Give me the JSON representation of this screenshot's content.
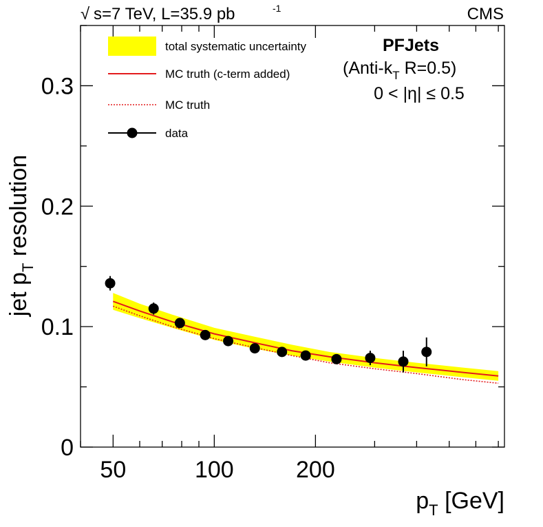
{
  "header": {
    "sqrt": "√",
    "energy": "s=7 TeV, L=35.9 pb",
    "energy_sup": "-1",
    "experiment": "CMS"
  },
  "annotation": {
    "line1": "PFJets",
    "line2": "(Anti-k",
    "line2_sub": "T",
    "line2_end": " R=0.5)",
    "line3": "0 < |η| ≤ 0.5"
  },
  "legend": {
    "band": "total systematic uncertainty",
    "mc_cterm": "MC truth (c-term added)",
    "mc_truth": "MC truth",
    "data": "data"
  },
  "colors": {
    "band": "#ffff00",
    "mc_cterm": "#e31a1c",
    "mc_truth": "#e31a1c",
    "data": "#000000"
  },
  "chart_data": {
    "type": "scatter",
    "xlabel": "p",
    "xlabel_sub": "T",
    "xlabel_unit": " [GeV]",
    "ylabel": "jet p",
    "ylabel_sub": "T",
    "ylabel_end": " resolution",
    "xscale": "log",
    "xlim": [
      40,
      730
    ],
    "ylim": [
      0,
      0.35
    ],
    "x_ticks": [
      {
        "value": 50,
        "label": "50"
      },
      {
        "value": 100,
        "label": "100"
      },
      {
        "value": 200,
        "label": "200"
      }
    ],
    "y_ticks": [
      {
        "value": 0,
        "label": "0"
      },
      {
        "value": 0.1,
        "label": "0.1"
      },
      {
        "value": 0.2,
        "label": "0.2"
      },
      {
        "value": 0.3,
        "label": "0.3"
      }
    ],
    "series": [
      {
        "name": "data",
        "kind": "points",
        "x": [
          49,
          66,
          79,
          94,
          110,
          132,
          159,
          187,
          231,
          291,
          365,
          428
        ],
        "y": [
          0.136,
          0.115,
          0.103,
          0.093,
          0.088,
          0.082,
          0.079,
          0.076,
          0.073,
          0.074,
          0.071,
          0.079
        ],
        "yerr": [
          0.006,
          0.005,
          0.003,
          0.003,
          0.003,
          0.003,
          0.003,
          0.003,
          0.003,
          0.006,
          0.009,
          0.012
        ]
      },
      {
        "name": "MC truth (c-term added)",
        "kind": "line",
        "x": [
          50,
          60,
          75,
          100,
          130,
          170,
          220,
          300,
          400,
          550,
          700
        ],
        "y": [
          0.121,
          0.113,
          0.104,
          0.094,
          0.087,
          0.08,
          0.075,
          0.07,
          0.066,
          0.062,
          0.059
        ]
      },
      {
        "name": "MC truth",
        "kind": "dotted",
        "x": [
          50,
          60,
          75,
          100,
          130,
          170,
          220,
          300,
          400,
          550,
          700
        ],
        "y": [
          0.117,
          0.109,
          0.1,
          0.09,
          0.083,
          0.076,
          0.07,
          0.065,
          0.061,
          0.056,
          0.053
        ]
      },
      {
        "name": "total systematic uncertainty",
        "kind": "band",
        "x": [
          50,
          60,
          75,
          100,
          130,
          170,
          220,
          300,
          400,
          550,
          700
        ],
        "y_low": [
          0.114,
          0.107,
          0.099,
          0.089,
          0.082,
          0.076,
          0.071,
          0.066,
          0.062,
          0.058,
          0.055
        ],
        "y_high": [
          0.128,
          0.119,
          0.11,
          0.099,
          0.092,
          0.085,
          0.079,
          0.074,
          0.07,
          0.066,
          0.063
        ]
      }
    ]
  }
}
